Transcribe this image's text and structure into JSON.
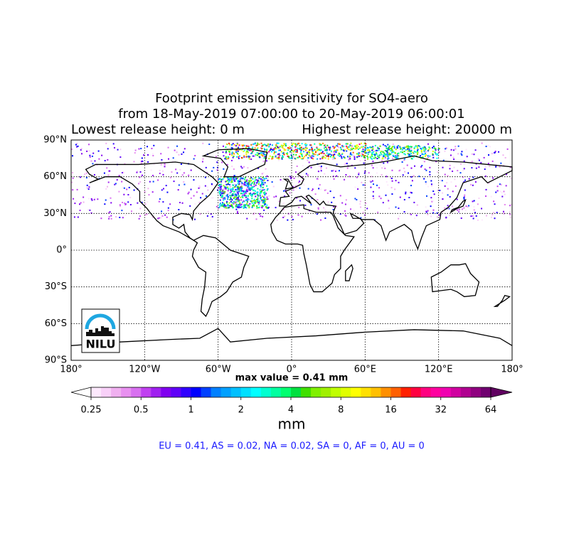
{
  "title": {
    "line1": "Footprint emission sensitivity for SO4-aero",
    "line2": "from 18-May-2019 07:00:00 to 20-May-2019 06:00:01",
    "line3_left": "Lowest release height: 0 m",
    "line3_right": "Highest release height: 20000 m"
  },
  "map": {
    "projection": "equirectangular",
    "xlim": [
      -180,
      180
    ],
    "ylim": [
      -90,
      90
    ],
    "xticks": [
      {
        "value": -180,
        "label": "180°"
      },
      {
        "value": -120,
        "label": "120°W"
      },
      {
        "value": -60,
        "label": "60°W"
      },
      {
        "value": 0,
        "label": "0°"
      },
      {
        "value": 60,
        "label": "60°E"
      },
      {
        "value": 120,
        "label": "120°E"
      },
      {
        "value": 180,
        "label": "180°"
      }
    ],
    "yticks": [
      {
        "value": -90,
        "label": "90°S"
      },
      {
        "value": -60,
        "label": "60°S"
      },
      {
        "value": -30,
        "label": "30°S"
      },
      {
        "value": 0,
        "label": "0°"
      },
      {
        "value": 30,
        "label": "30°N"
      },
      {
        "value": 60,
        "label": "60°N"
      },
      {
        "value": 90,
        "label": "90°N"
      }
    ],
    "grid": true
  },
  "logo": "NILU",
  "max_value_label": "max value = 0.41 mm",
  "colorbar": {
    "label": "mm",
    "log": true,
    "lim": [
      0.25,
      64
    ],
    "ticks": [
      0.25,
      0.5,
      1,
      2,
      4,
      8,
      16,
      32,
      64
    ],
    "under_color": "#ffffff",
    "over_color": "#600060",
    "colors": [
      "#fce8fc",
      "#f8d0f8",
      "#f0b0f0",
      "#e890f0",
      "#d870f0",
      "#c040f0",
      "#a020f0",
      "#8000f0",
      "#6000f8",
      "#3000ff",
      "#0000ff",
      "#0040ff",
      "#0080ff",
      "#00a0ff",
      "#00c0ff",
      "#00e0ff",
      "#00ffff",
      "#00ffd0",
      "#00ffa0",
      "#00ff70",
      "#00e040",
      "#40e000",
      "#80f000",
      "#a0f000",
      "#c0ff00",
      "#e0ff00",
      "#ffff00",
      "#ffe000",
      "#ffc000",
      "#ff9000",
      "#ff6000",
      "#ff2000",
      "#ff0040",
      "#ff0080",
      "#ff00a0",
      "#f000b0",
      "#d000a0",
      "#b00090",
      "#900080",
      "#700070"
    ]
  },
  "summary": "EU = 0.41,  AS = 0.02,  NA = 0.02,  SA = 0,  AF = 0,  AU = 0"
}
